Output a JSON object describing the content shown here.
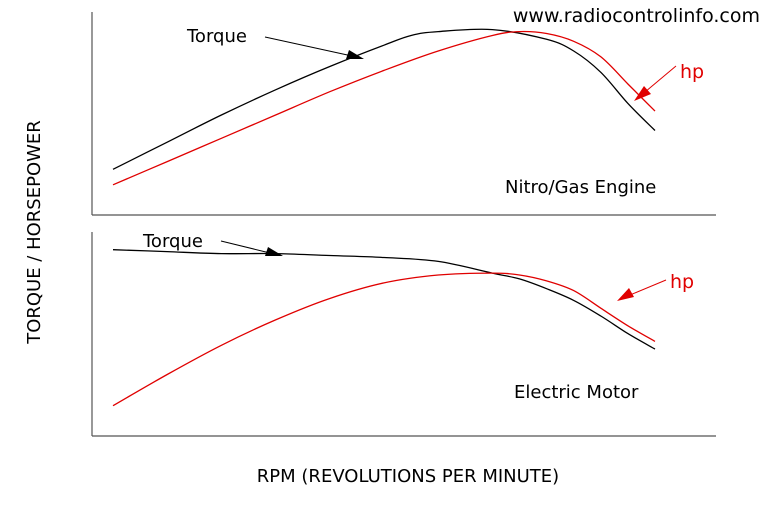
{
  "watermark": "www.radiocontrolinfo.com",
  "ylabel": "TORQUE / HORSEPOWER",
  "xlabel": "RPM (REVOLUTIONS PER MINUTE)",
  "colors": {
    "torque": "#000000",
    "hp": "#e00000",
    "axis": "#555555"
  },
  "chart_data": [
    {
      "type": "line",
      "title": "Nitro/Gas Engine",
      "xlabel": "RPM (REVOLUTIONS PER MINUTE)",
      "ylabel": "TORQUE / HORSEPOWER",
      "xlim": [
        0,
        100
      ],
      "ylim": [
        0,
        100
      ],
      "grid": false,
      "series": [
        {
          "name": "Torque",
          "color": "#000000",
          "x": [
            0,
            10,
            20,
            30,
            40,
            50,
            55,
            60,
            70,
            80,
            85,
            90,
            95,
            100
          ],
          "y": [
            22,
            36,
            50,
            63,
            75,
            86,
            91,
            93,
            94,
            89,
            83,
            72,
            56,
            42
          ]
        },
        {
          "name": "hp",
          "color": "#e00000",
          "x": [
            0,
            10,
            20,
            30,
            40,
            50,
            60,
            70,
            75,
            80,
            85,
            90,
            95,
            100
          ],
          "y": [
            14,
            26,
            38,
            50,
            62,
            73,
            83,
            91,
            93,
            92,
            88,
            80,
            66,
            52
          ]
        }
      ]
    },
    {
      "type": "line",
      "title": "Electric Motor",
      "xlabel": "RPM (REVOLUTIONS PER MINUTE)",
      "ylabel": "TORQUE / HORSEPOWER",
      "xlim": [
        0,
        100
      ],
      "ylim": [
        0,
        100
      ],
      "grid": false,
      "series": [
        {
          "name": "Torque",
          "color": "#000000",
          "x": [
            0,
            10,
            20,
            30,
            40,
            50,
            60,
            70,
            75,
            80,
            85,
            90,
            95,
            100
          ],
          "y": [
            94,
            93,
            92,
            92,
            91,
            90,
            88,
            82,
            79,
            74,
            68,
            60,
            51,
            43
          ]
        },
        {
          "name": "hp",
          "color": "#e00000",
          "x": [
            0,
            10,
            20,
            30,
            40,
            50,
            60,
            70,
            75,
            80,
            85,
            90,
            95,
            100
          ],
          "y": [
            14,
            30,
            45,
            58,
            69,
            77,
            81,
            82,
            81,
            78,
            73,
            64,
            55,
            47
          ]
        }
      ]
    }
  ]
}
